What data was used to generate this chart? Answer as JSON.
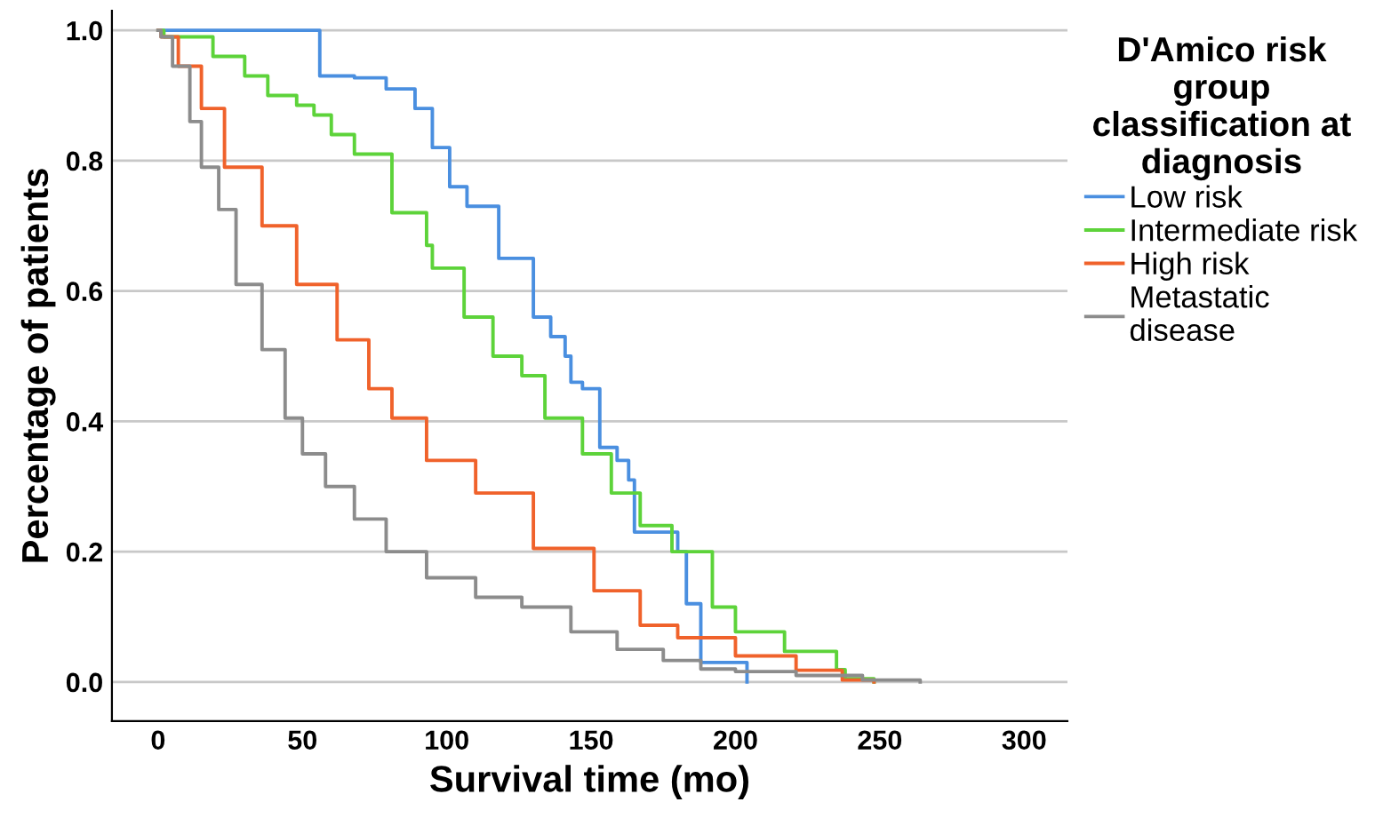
{
  "chart_data": {
    "type": "step",
    "xlabel": "Survival time (mo)",
    "ylabel": "Percentage of patients",
    "legend_title": "D'Amico risk group classification at diagnosis",
    "legend": "right",
    "xlim": [
      -16,
      315
    ],
    "xticks": [
      0,
      50,
      100,
      150,
      200,
      250,
      300
    ],
    "ylim": [
      -0.06,
      1.03
    ],
    "yticks": [
      {
        "value": 0,
        "label": "0.0"
      },
      {
        "value": 0.2,
        "label": "0.2"
      },
      {
        "value": 0.4,
        "label": "0.4"
      },
      {
        "value": 0.6,
        "label": "0.6"
      },
      {
        "value": 0.8,
        "label": "0.8"
      },
      {
        "value": 1,
        "label": "1.0"
      }
    ],
    "grid": "y",
    "series": [
      {
        "name": "Low risk",
        "color": "#4a8fe0",
        "x": [
          0,
          47,
          56,
          68,
          79,
          89,
          95,
          101,
          107,
          118,
          126,
          130,
          136,
          141,
          143,
          147,
          153,
          159,
          163,
          165,
          173,
          180,
          183,
          188,
          204,
          204
        ],
        "values": [
          1,
          1,
          0.93,
          0.927,
          0.91,
          0.88,
          0.82,
          0.76,
          0.73,
          0.65,
          0.65,
          0.56,
          0.53,
          0.5,
          0.46,
          0.45,
          0.36,
          0.34,
          0.31,
          0.23,
          0.23,
          0.2,
          0.12,
          0.03,
          0.03,
          0
        ]
      },
      {
        "name": "Intermediate risk",
        "color": "#5dd33a",
        "x": [
          0,
          2,
          19,
          30,
          38,
          48,
          54,
          60,
          68,
          81,
          93,
          95,
          106,
          116,
          126,
          134,
          147,
          157,
          167,
          178,
          192,
          200,
          217,
          235,
          238,
          248
        ],
        "values": [
          1,
          0.99,
          0.96,
          0.93,
          0.9,
          0.885,
          0.87,
          0.84,
          0.81,
          0.72,
          0.67,
          0.635,
          0.56,
          0.5,
          0.47,
          0.405,
          0.35,
          0.29,
          0.24,
          0.2,
          0.115,
          0.077,
          0.047,
          0.019,
          0.005,
          0
        ]
      },
      {
        "name": "High risk",
        "color": "#f0622b",
        "x": [
          0,
          1,
          7,
          15,
          23,
          36,
          48,
          62,
          73,
          81,
          93,
          110,
          130,
          151,
          167,
          180,
          200,
          221,
          237,
          248
        ],
        "values": [
          1,
          0.99,
          0.945,
          0.88,
          0.79,
          0.7,
          0.61,
          0.525,
          0.45,
          0.405,
          0.34,
          0.29,
          0.205,
          0.14,
          0.087,
          0.068,
          0.04,
          0.018,
          0.003,
          0
        ]
      },
      {
        "name": "Metastatic disease",
        "color": "#8c8c8c",
        "x": [
          0,
          1,
          5,
          11,
          15,
          21,
          27,
          36,
          44,
          50,
          58,
          68,
          79,
          93,
          110,
          126,
          143,
          159,
          175,
          188,
          200,
          221,
          244,
          264
        ],
        "values": [
          1,
          0.99,
          0.945,
          0.86,
          0.79,
          0.725,
          0.61,
          0.51,
          0.405,
          0.35,
          0.3,
          0.25,
          0.2,
          0.16,
          0.13,
          0.115,
          0.077,
          0.05,
          0.033,
          0.02,
          0.016,
          0.01,
          0.003,
          0
        ]
      }
    ]
  }
}
